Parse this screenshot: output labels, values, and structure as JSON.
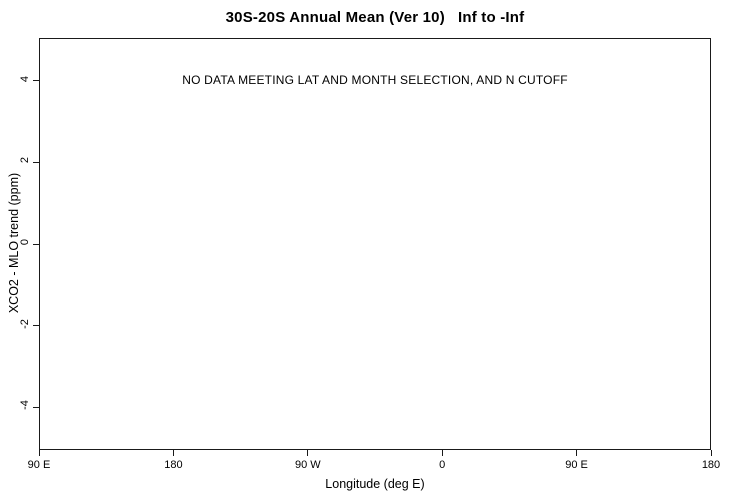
{
  "chart_data": {
    "type": "scatter",
    "title": "30S-20S Annual Mean (Ver 10)   Inf to -Inf",
    "xlabel": "Longitude (deg E)",
    "ylabel": "XCO2 - MLO trend (ppm)",
    "annotation": "NO DATA MEETING LAT AND MONTH SELECTION, AND N CUTOFF",
    "x_tick_labels": [
      "90 E",
      "180",
      "90 W",
      "0",
      "90 E",
      "180"
    ],
    "y_tick_labels": [
      "4",
      "2",
      "0",
      "-2",
      "-4"
    ],
    "y_tick_values": [
      4,
      2,
      0,
      -2,
      -4
    ],
    "ylim": [
      -5.05,
      5.05
    ],
    "grid": false,
    "legend": "none",
    "series": [],
    "axis_color": "#1a1a1a",
    "background_color": "#ffffff"
  }
}
